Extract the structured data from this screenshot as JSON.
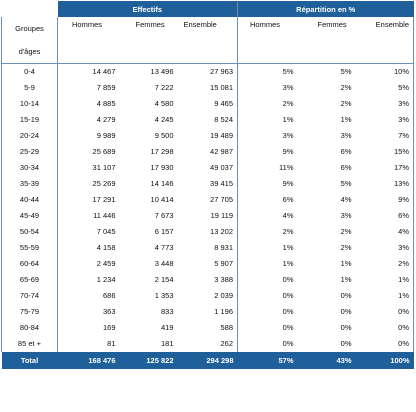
{
  "header": {
    "effectifs": "Effectifs",
    "repartition": "Répartition en %",
    "groupes_line1": "Groupes",
    "groupes_line2": "d'âges",
    "cols": [
      "Hommes",
      "Femmes",
      "Ensemble",
      "Hommes",
      "Femmes",
      "Ensemble"
    ]
  },
  "rows": [
    {
      "age": "0-4",
      "h": "14 467",
      "f": "13 496",
      "e": "27 963",
      "ph": "5%",
      "pf": "5%",
      "pe": "10%"
    },
    {
      "age": "5-9",
      "h": "7 859",
      "f": "7 222",
      "e": "15 081",
      "ph": "3%",
      "pf": "2%",
      "pe": "5%"
    },
    {
      "age": "10-14",
      "h": "4 885",
      "f": "4 580",
      "e": "9 465",
      "ph": "2%",
      "pf": "2%",
      "pe": "3%"
    },
    {
      "age": "15-19",
      "h": "4 279",
      "f": "4 245",
      "e": "8 524",
      "ph": "1%",
      "pf": "1%",
      "pe": "3%"
    },
    {
      "age": "20-24",
      "h": "9 989",
      "f": "9 500",
      "e": "19 489",
      "ph": "3%",
      "pf": "3%",
      "pe": "7%"
    },
    {
      "age": "25-29",
      "h": "25 689",
      "f": "17 298",
      "e": "42 987",
      "ph": "9%",
      "pf": "6%",
      "pe": "15%"
    },
    {
      "age": "30-34",
      "h": "31 107",
      "f": "17 930",
      "e": "49 037",
      "ph": "11%",
      "pf": "6%",
      "pe": "17%"
    },
    {
      "age": "35-39",
      "h": "25 269",
      "f": "14 146",
      "e": "39 415",
      "ph": "9%",
      "pf": "5%",
      "pe": "13%"
    },
    {
      "age": "40-44",
      "h": "17 291",
      "f": "10 414",
      "e": "27 705",
      "ph": "6%",
      "pf": "4%",
      "pe": "9%"
    },
    {
      "age": "45-49",
      "h": "11 446",
      "f": "7 673",
      "e": "19 119",
      "ph": "4%",
      "pf": "3%",
      "pe": "6%"
    },
    {
      "age": "50-54",
      "h": "7 045",
      "f": "6 157",
      "e": "13 202",
      "ph": "2%",
      "pf": "2%",
      "pe": "4%"
    },
    {
      "age": "55-59",
      "h": "4 158",
      "f": "4 773",
      "e": "8 931",
      "ph": "1%",
      "pf": "2%",
      "pe": "3%"
    },
    {
      "age": "60-64",
      "h": "2 459",
      "f": "3 448",
      "e": "5 907",
      "ph": "1%",
      "pf": "1%",
      "pe": "2%"
    },
    {
      "age": "65-69",
      "h": "1 234",
      "f": "2 154",
      "e": "3 388",
      "ph": "0%",
      "pf": "1%",
      "pe": "1%"
    },
    {
      "age": "70-74",
      "h": "686",
      "f": "1 353",
      "e": "2 039",
      "ph": "0%",
      "pf": "0%",
      "pe": "1%"
    },
    {
      "age": "75-79",
      "h": "363",
      "f": "833",
      "e": "1 196",
      "ph": "0%",
      "pf": "0%",
      "pe": "0%"
    },
    {
      "age": "80-84",
      "h": "169",
      "f": "419",
      "e": "588",
      "ph": "0%",
      "pf": "0%",
      "pe": "0%"
    },
    {
      "age": "85 et +",
      "h": "81",
      "f": "181",
      "e": "262",
      "ph": "0%",
      "pf": "0%",
      "pe": "0%"
    }
  ],
  "total": {
    "label": "Total",
    "h": "168 476",
    "f": "125 822",
    "e": "294 298",
    "ph": "57%",
    "pf": "43%",
    "pe": "100%"
  },
  "colors": {
    "header_blue": "#1f5f9a",
    "border": "#6b8fb8"
  }
}
